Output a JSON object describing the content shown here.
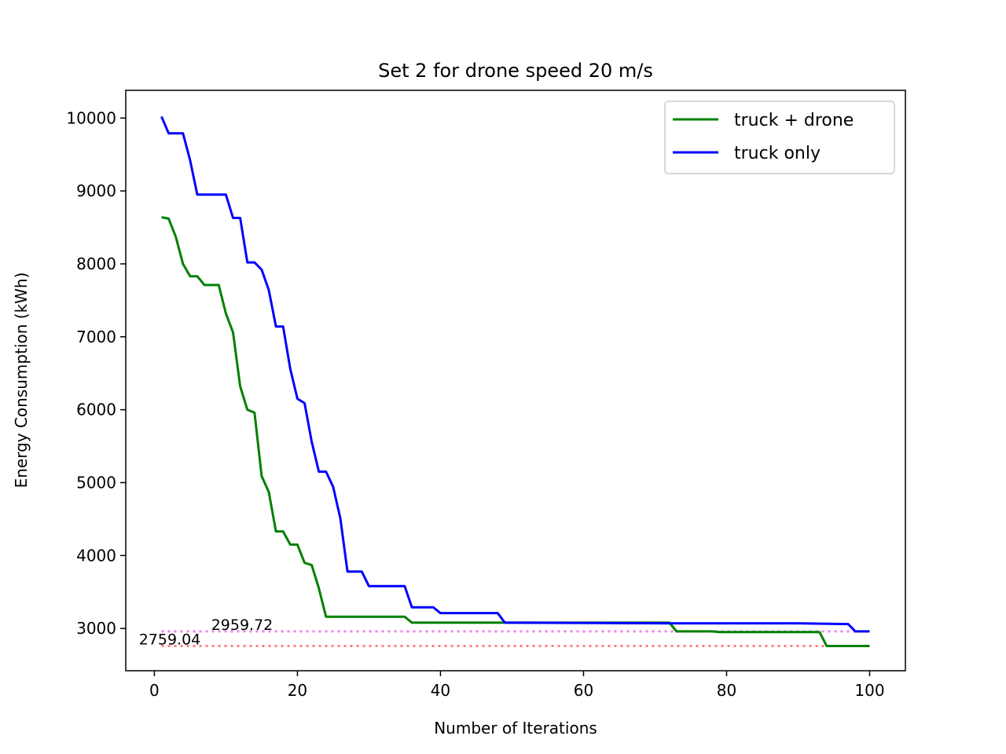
{
  "chart_data": {
    "type": "line",
    "title": "Set 2 for drone speed 20 m/s",
    "xlabel": "Number of Iterations",
    "ylabel": "Energy Consumption (kWh)",
    "xlim": [
      -4,
      105
    ],
    "ylim": [
      2420,
      10380
    ],
    "x_ticks": [
      0,
      20,
      40,
      60,
      80,
      100
    ],
    "y_ticks": [
      3000,
      4000,
      5000,
      6000,
      7000,
      8000,
      9000,
      10000
    ],
    "grid": false,
    "legend_position": "upper right",
    "series": [
      {
        "name": "truck + drone",
        "color": "#008000",
        "x": [
          1,
          2,
          3,
          4,
          5,
          6,
          7,
          8,
          9,
          10,
          11,
          12,
          13,
          14,
          15,
          16,
          17,
          18,
          19,
          20,
          21,
          22,
          23,
          24,
          35,
          36,
          72,
          73,
          78,
          79,
          93,
          94,
          100
        ],
        "y": [
          8640,
          8620,
          8370,
          8000,
          7830,
          7830,
          7710,
          7710,
          7710,
          7320,
          7060,
          6320,
          6000,
          5960,
          5090,
          4870,
          4330,
          4330,
          4150,
          4150,
          3900,
          3870,
          3550,
          3160,
          3160,
          3080,
          3080,
          2960,
          2960,
          2950,
          2950,
          2759.04,
          2759.04
        ]
      },
      {
        "name": "truck only",
        "color": "#0000ff",
        "x": [
          1,
          2,
          3,
          4,
          5,
          6,
          7,
          8,
          9,
          10,
          11,
          12,
          13,
          14,
          15,
          16,
          17,
          18,
          19,
          20,
          21,
          22,
          23,
          24,
          25,
          26,
          27,
          28,
          29,
          30,
          31,
          34,
          35,
          36,
          38,
          39,
          40,
          48,
          49,
          72,
          90,
          97,
          98,
          100
        ],
        "y": [
          10020,
          9790,
          9790,
          9790,
          9420,
          8950,
          8950,
          8950,
          8950,
          8950,
          8630,
          8630,
          8020,
          8020,
          7920,
          7640,
          7140,
          7140,
          6560,
          6150,
          6090,
          5560,
          5150,
          5150,
          4940,
          4510,
          3780,
          3780,
          3780,
          3580,
          3580,
          3580,
          3580,
          3290,
          3290,
          3290,
          3210,
          3210,
          3080,
          3070,
          3070,
          3060,
          2959.72,
          2959.72
        ]
      }
    ],
    "reference_lines": [
      {
        "value": 2959.72,
        "label": "2959.72",
        "color": "#ee82ee"
      },
      {
        "value": 2759.04,
        "label": "2759.04",
        "color": "#ff7f7f"
      }
    ]
  }
}
